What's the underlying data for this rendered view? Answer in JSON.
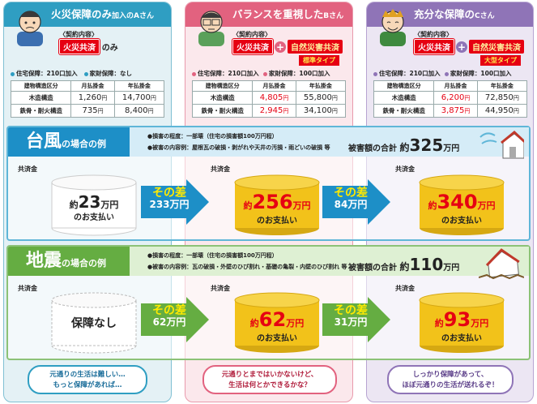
{
  "plans": [
    {
      "title": "火災保障のみ",
      "title_suffix": "加入のAさん",
      "contract_label": "〈契約内容〉",
      "tag1": "火災共済",
      "tag_end": "のみ",
      "info": [
        "住宅保障：210口加入",
        "家財保障：なし"
      ],
      "table_head": [
        "建物構造区分",
        "月払掛金",
        "年払掛金"
      ],
      "rows": [
        {
          "label": "木造構造",
          "monthly": "1,260",
          "yearly": "14,700"
        },
        {
          "label": "鉄骨・耐火構造",
          "monthly": "735",
          "yearly": "8,400"
        }
      ]
    },
    {
      "title": "バランスを重視した",
      "title_suffix": "Bさん",
      "contract_label": "〈契約内容〉",
      "tag1": "火災共済",
      "tag2": "自然災害共済",
      "sub": "標準タイプ",
      "info": [
        "住宅保障：210口加入",
        "家財保障：100口加入"
      ],
      "table_head": [
        "建物構造区分",
        "月払掛金",
        "年払掛金"
      ],
      "rows": [
        {
          "label": "木造構造",
          "monthly": "4,805",
          "yearly": "55,800"
        },
        {
          "label": "鉄骨・耐火構造",
          "monthly": "2,945",
          "yearly": "34,100"
        }
      ]
    },
    {
      "title": "充分な保障の",
      "title_suffix": "Cさん",
      "contract_label": "〈契約内容〉",
      "tag1": "火災共済",
      "tag2": "自然災害共済",
      "sub": "大型タイプ",
      "info": [
        "住宅保障：210口加入",
        "家財保障：100口加入"
      ],
      "table_head": [
        "建物構造区分",
        "月払掛金",
        "年払掛金"
      ],
      "rows": [
        {
          "label": "木造構造",
          "monthly": "6,200",
          "yearly": "72,850"
        },
        {
          "label": "鉄骨・耐火構造",
          "monthly": "3,875",
          "yearly": "44,950"
        }
      ]
    }
  ],
  "yen": "円",
  "typhoon": {
    "title": "台風",
    "title_suffix": "の場合の例",
    "desc1": "●損害の程度：一部壊（住宅の損害額100万円程）",
    "desc2": "●被害の内容例：屋根瓦の破損・剥がれや天井の汚損・雨どいの破損 等",
    "damage_label": "被害額の合計",
    "damage_pre": "約",
    "damage_value": "325",
    "damage_unit": "万円",
    "fund_label": "共済金",
    "a_pre": "約",
    "a_value": "23",
    "a_unit": "万円",
    "pay": "のお支払い",
    "diff1_label": "その差",
    "diff1_value": "233万円",
    "b_pre": "約",
    "b_value": "256",
    "b_unit": "万円",
    "diff2_label": "その差",
    "diff2_value": "84万円",
    "c_pre": "約",
    "c_value": "340",
    "c_unit": "万円"
  },
  "quake": {
    "title": "地震",
    "title_suffix": "の場合の例",
    "desc1": "●損害の程度：一部壊（住宅の損害額100万円程）",
    "desc2": "●被害の内容例：瓦の破損・外壁のひび割れ・基礎の亀裂・内壁のひび割れ 等",
    "damage_label": "被害額の合計",
    "damage_pre": "約",
    "damage_value": "110",
    "damage_unit": "万円",
    "fund_label": "共済金",
    "a_text": "保障なし",
    "diff1_label": "その差",
    "diff1_value": "62万円",
    "b_pre": "約",
    "b_value": "62",
    "b_unit": "万円",
    "pay": "のお支払い",
    "diff2_label": "その差",
    "diff2_value": "31万円",
    "c_pre": "約",
    "c_value": "93",
    "c_unit": "万円"
  },
  "bubbles": [
    [
      "元通りの生活は難しい…",
      "もっと保障があれば…"
    ],
    [
      "元通りとまではいかないけど、",
      "生活は何とかできるかな？"
    ],
    [
      "しっかり保障があって、",
      "ほぼ元通りの生活が送れるぞ！"
    ]
  ],
  "colors": {
    "accent_a": "#2f9ec2",
    "accent_b": "#e2627f",
    "accent_c": "#8f74b7",
    "red": "#e60012",
    "gold": "#f2c21a"
  }
}
